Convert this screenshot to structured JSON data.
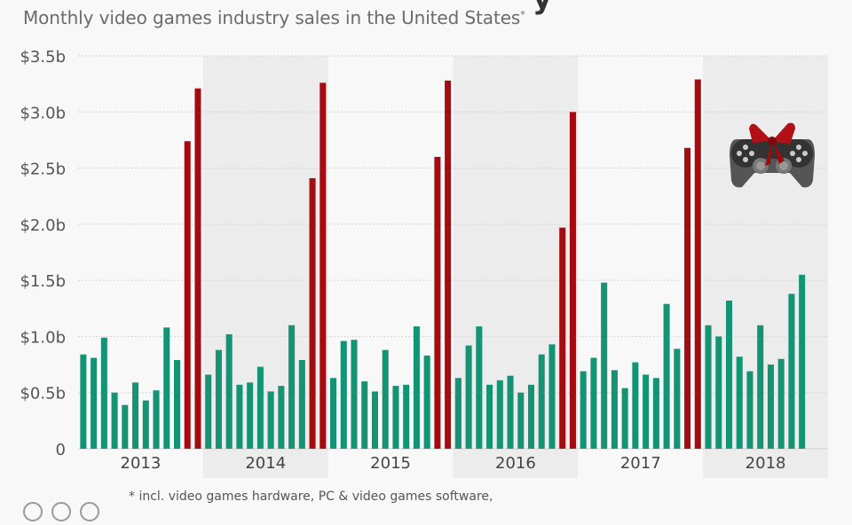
{
  "header": {
    "title_fragment": "y",
    "subtitle": "Monthly video games industry sales in the United States",
    "subtitle_marker": "*"
  },
  "footer": {
    "footnote": "* incl. video games hardware, PC & video games software,"
  },
  "colors": {
    "regular_month": "#149474",
    "holiday_month": "#a30d11",
    "band_shade": "#ececec",
    "background": "#f8f8f8"
  },
  "icons": [
    "gift-controller-icon",
    "creative-commons-icon"
  ],
  "chart_data": {
    "type": "bar",
    "title": "Monthly video games industry sales in the United States*",
    "xlabel": "",
    "ylabel": "",
    "ylim": [
      0,
      3.5
    ],
    "yticks": [
      0,
      0.5,
      1.0,
      1.5,
      2.0,
      2.5,
      3.0,
      3.5
    ],
    "ytick_labels": [
      "0",
      "$0.5b",
      "$1.0b",
      "$1.5b",
      "$2.0b",
      "$2.5b",
      "$3.0b",
      "$3.5b"
    ],
    "grid": true,
    "unit": "billion USD",
    "highlight": "November and December bars shown in red",
    "years": [
      {
        "label": "2013",
        "shaded": false,
        "values": [
          0.84,
          0.81,
          0.99,
          0.5,
          0.39,
          0.59,
          0.43,
          0.52,
          1.08,
          0.79,
          2.74,
          3.21
        ]
      },
      {
        "label": "2014",
        "shaded": true,
        "values": [
          0.66,
          0.88,
          1.02,
          0.57,
          0.59,
          0.73,
          0.51,
          0.56,
          1.1,
          0.79,
          2.41,
          3.26
        ]
      },
      {
        "label": "2015",
        "shaded": false,
        "values": [
          0.63,
          0.96,
          0.97,
          0.6,
          0.51,
          0.88,
          0.56,
          0.57,
          1.09,
          0.83,
          2.6,
          3.28
        ]
      },
      {
        "label": "2016",
        "shaded": true,
        "values": [
          0.63,
          0.92,
          1.09,
          0.57,
          0.61,
          0.65,
          0.5,
          0.57,
          0.84,
          0.93,
          1.97,
          3.0
        ]
      },
      {
        "label": "2017",
        "shaded": false,
        "values": [
          0.69,
          0.81,
          1.48,
          0.7,
          0.54,
          0.77,
          0.66,
          0.63,
          1.29,
          0.89,
          2.68,
          3.29
        ]
      },
      {
        "label": "2018",
        "shaded": true,
        "values": [
          1.1,
          1.0,
          1.32,
          0.82,
          0.69,
          1.1,
          0.75,
          0.8,
          1.38,
          1.55
        ]
      }
    ]
  }
}
